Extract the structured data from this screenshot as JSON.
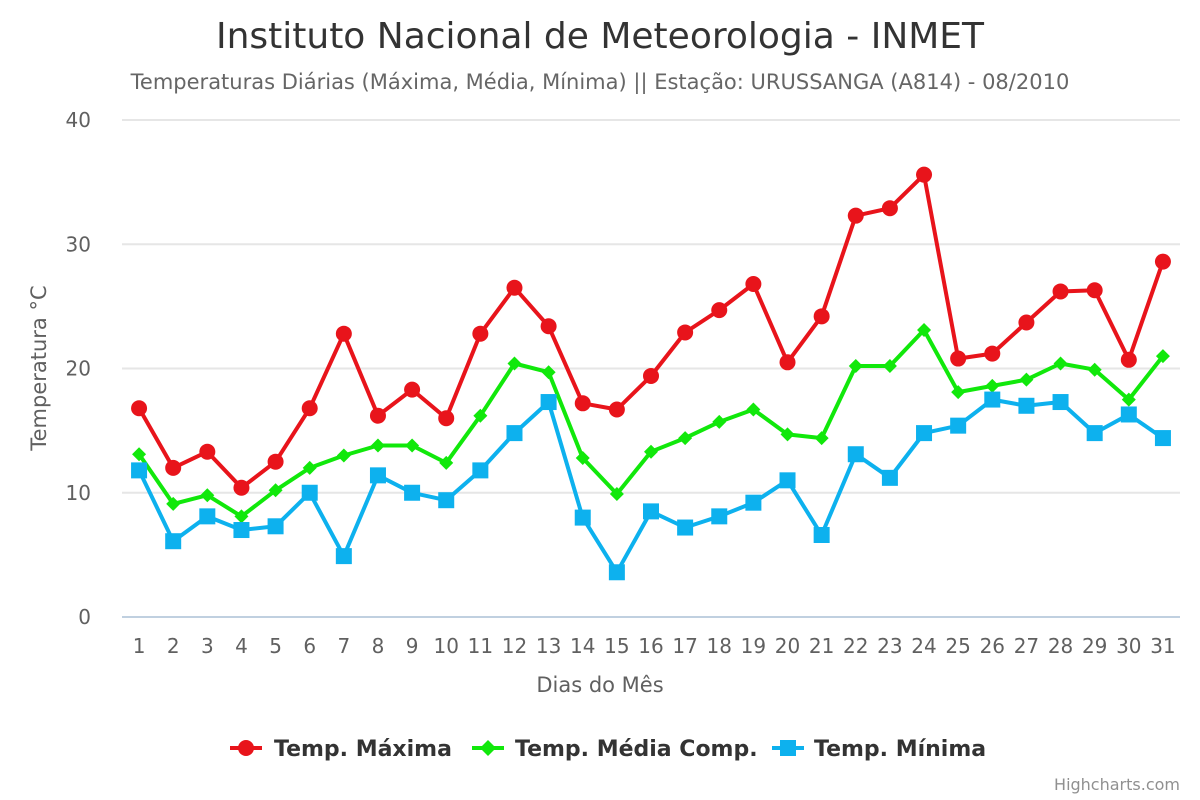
{
  "chart_data": {
    "type": "line",
    "title": "Instituto Nacional de Meteorologia - INMET",
    "subtitle": "Temperaturas Diárias (Máxima, Média, Mínima) || Estação: URUSSANGA (A814) - 08/2010",
    "xlabel": "Dias do Mês",
    "ylabel": "Temperatura °C",
    "ylim": [
      0,
      40
    ],
    "yticks": [
      0,
      10,
      20,
      30,
      40
    ],
    "grid": true,
    "legend_position": "bottom-center",
    "categories": [
      "1",
      "2",
      "3",
      "4",
      "5",
      "6",
      "7",
      "8",
      "9",
      "10",
      "11",
      "12",
      "13",
      "14",
      "15",
      "16",
      "17",
      "18",
      "19",
      "20",
      "21",
      "22",
      "23",
      "24",
      "25",
      "26",
      "27",
      "28",
      "29",
      "30",
      "31"
    ],
    "series": [
      {
        "name": "Temp. Máxima",
        "color": "#e8141b",
        "marker": "circle",
        "values": [
          16.8,
          12.0,
          13.3,
          10.4,
          12.5,
          16.8,
          22.8,
          16.2,
          18.3,
          16.0,
          22.8,
          26.5,
          23.4,
          17.2,
          16.7,
          19.4,
          22.9,
          24.7,
          26.8,
          20.5,
          24.2,
          32.3,
          32.9,
          35.6,
          20.8,
          21.2,
          23.7,
          26.2,
          26.3,
          20.7,
          28.6
        ]
      },
      {
        "name": "Temp. Média Comp.",
        "color": "#11e80b",
        "marker": "diamond",
        "values": [
          13.1,
          9.1,
          9.8,
          8.1,
          10.2,
          12.0,
          13.0,
          13.8,
          13.8,
          12.4,
          16.2,
          20.4,
          19.7,
          12.8,
          9.9,
          13.3,
          14.4,
          15.7,
          16.7,
          14.7,
          14.4,
          20.2,
          20.2,
          23.1,
          18.1,
          18.6,
          19.1,
          20.4,
          19.9,
          17.5,
          21.0
        ]
      },
      {
        "name": "Temp. Mínima",
        "color": "#0db1ee",
        "marker": "square",
        "values": [
          11.8,
          6.1,
          8.1,
          7.0,
          7.3,
          10.0,
          4.9,
          11.4,
          10.0,
          9.4,
          11.8,
          14.8,
          17.3,
          8.0,
          3.6,
          8.5,
          7.2,
          8.1,
          9.2,
          11.0,
          6.6,
          13.1,
          11.2,
          14.8,
          15.4,
          17.5,
          17.0,
          17.3,
          14.8,
          16.3,
          14.4
        ]
      }
    ],
    "credits": "Highcharts.com"
  }
}
